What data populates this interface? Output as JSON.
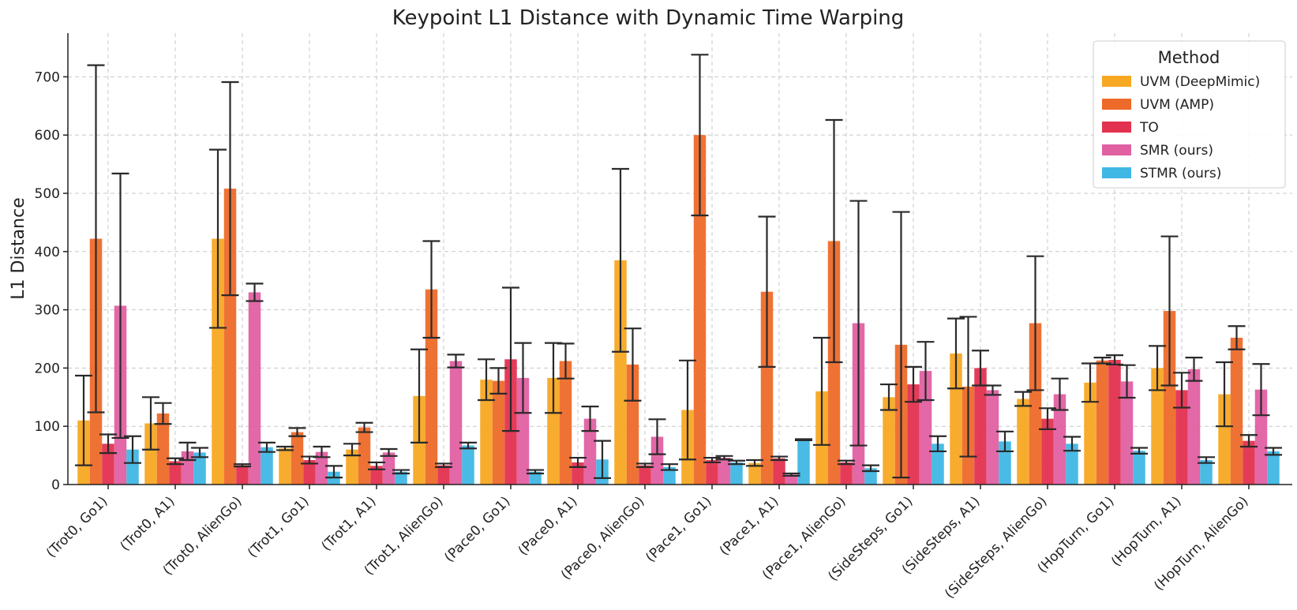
{
  "chart_data": {
    "type": "bar",
    "title": "Keypoint L1 Distance with Dynamic Time Warping",
    "xlabel": "",
    "ylabel": "L1 Distance",
    "ylim": [
      0,
      775
    ],
    "yticks": [
      0,
      100,
      200,
      300,
      400,
      500,
      600,
      700
    ],
    "grid": true,
    "legend": {
      "title": "Method",
      "placement": "top-right"
    },
    "categories": [
      "(Trot0, Go1)",
      "(Trot0, A1)",
      "(Trot0, AlienGo)",
      "(Trot1, Go1)",
      "(Trot1, A1)",
      "(Trot1, AlienGo)",
      "(Pace0, Go1)",
      "(Pace0, A1)",
      "(Pace0, AlienGo)",
      "(Pace1, Go1)",
      "(Pace1, A1)",
      "(Pace1, AlienGo)",
      "(SideSteps, Go1)",
      "(SideSteps, A1)",
      "(SideSteps, AlienGo)",
      "(HopTurn, Go1)",
      "(HopTurn, A1)",
      "(HopTurn, AlienGo)"
    ],
    "series": [
      {
        "name": "UVM (DeepMimic)",
        "color": "#f7a823",
        "values": [
          110,
          105,
          422,
          62,
          60,
          152,
          180,
          183,
          385,
          128,
          37,
          160,
          150,
          225,
          147,
          175,
          200,
          155
        ],
        "errors": [
          77,
          45,
          153,
          3,
          10,
          80,
          35,
          60,
          157,
          85,
          5,
          92,
          22,
          60,
          12,
          33,
          38,
          55
        ]
      },
      {
        "name": "UVM (AMP)",
        "color": "#ee6a2a",
        "values": [
          422,
          122,
          508,
          90,
          98,
          335,
          178,
          212,
          206,
          600,
          331,
          418,
          240,
          168,
          277,
          213,
          298,
          252
        ],
        "errors": [
          298,
          18,
          183,
          7,
          8,
          83,
          22,
          30,
          62,
          138,
          129,
          208,
          228,
          120,
          115,
          5,
          128,
          20
        ]
      },
      {
        "name": "TO",
        "color": "#e3324f",
        "values": [
          70,
          40,
          33,
          42,
          32,
          33,
          215,
          38,
          33,
          42,
          45,
          38,
          172,
          200,
          113,
          214,
          162,
          75
        ],
        "errors": [
          16,
          5,
          2,
          6,
          6,
          3,
          123,
          8,
          3,
          4,
          3,
          3,
          30,
          30,
          18,
          8,
          30,
          10
        ]
      },
      {
        "name": "SMR (ours)",
        "color": "#e060a2",
        "values": [
          307,
          57,
          330,
          56,
          55,
          212,
          183,
          113,
          82,
          46,
          17,
          277,
          195,
          162,
          155,
          177,
          198,
          163
        ],
        "errors": [
          227,
          15,
          15,
          9,
          6,
          11,
          60,
          21,
          30,
          3,
          2,
          210,
          50,
          8,
          27,
          28,
          20,
          44
        ]
      },
      {
        "name": "STMR (ours)",
        "color": "#3fb7e4",
        "values": [
          60,
          55,
          64,
          22,
          22,
          67,
          22,
          43,
          30,
          38,
          77,
          28,
          70,
          74,
          70,
          58,
          42,
          57
        ],
        "errors": [
          23,
          8,
          8,
          10,
          3,
          5,
          3,
          32,
          5,
          3,
          1,
          5,
          13,
          17,
          12,
          5,
          5,
          6
        ]
      }
    ]
  }
}
